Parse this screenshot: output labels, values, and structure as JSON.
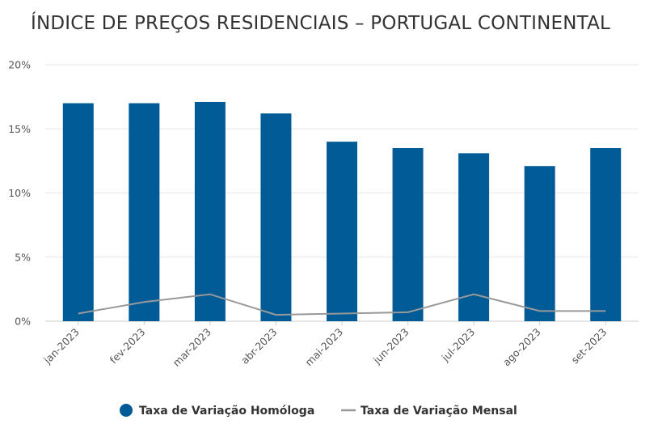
{
  "chart_data": {
    "type": "bar",
    "title": "ÍNDICE DE PREÇOS RESIDENCIAIS – PORTUGAL CONTINENTAL",
    "categories": [
      "jan-2023",
      "fev-2023",
      "mar-2023",
      "abr-2023",
      "mai-2023",
      "jun-2023",
      "jul-2023",
      "ago-2023",
      "set-2023"
    ],
    "series": [
      {
        "name": "Taxa de Variação Homóloga",
        "type": "bar",
        "color": "#005b96",
        "values": [
          17.0,
          17.0,
          17.1,
          16.2,
          14.0,
          13.5,
          13.1,
          12.1,
          13.5
        ]
      },
      {
        "name": "Taxa de Variação Mensal",
        "type": "line",
        "color": "#999999",
        "values": [
          0.6,
          1.5,
          2.1,
          0.5,
          0.6,
          0.7,
          2.1,
          0.8,
          0.8
        ]
      }
    ],
    "y_ticks": [
      "0%",
      "5%",
      "10%",
      "15%",
      "20%"
    ],
    "ylim": [
      0,
      20
    ],
    "grid": true,
    "legend_position": "bottom-center"
  }
}
